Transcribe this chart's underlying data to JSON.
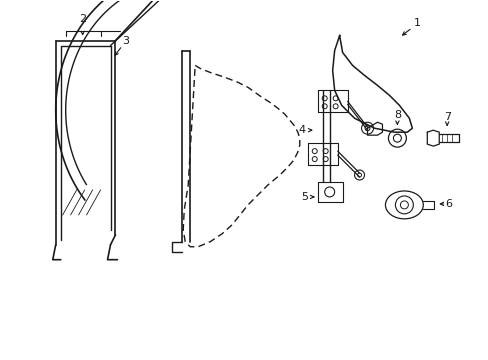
{
  "background_color": "#ffffff",
  "line_color": "#1a1a1a",
  "line_width": 0.9,
  "label_fontsize": 8,
  "fig_width": 4.89,
  "fig_height": 3.6,
  "dpi": 100
}
